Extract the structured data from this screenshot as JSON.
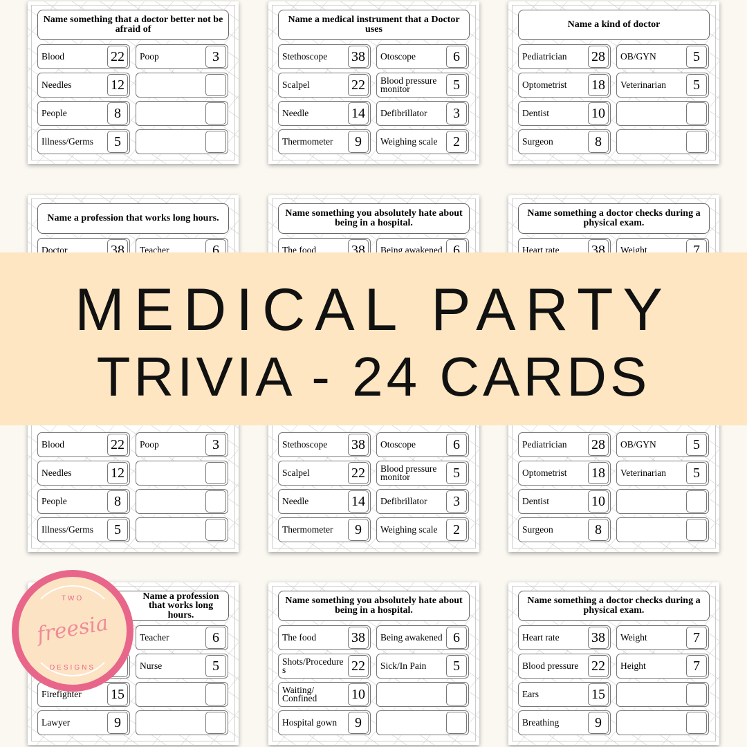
{
  "banner": {
    "line1": "MEDICAL PARTY",
    "line2": "TRIVIA - 24 CARDS",
    "color": "#fde6c1"
  },
  "logo": {
    "top": "TWO",
    "script": "freesia",
    "bottom": "DESIGNS",
    "ring_color": "#e8668a"
  },
  "cards": [
    {
      "question": "Name something that a doctor better not be afraid of",
      "left": [
        [
          "Blood",
          "22"
        ],
        [
          "Needles",
          "12"
        ],
        [
          "People",
          "8"
        ],
        [
          "Illness/Germs",
          "5"
        ]
      ],
      "right": [
        [
          "Poop",
          "3"
        ],
        [
          "",
          ""
        ],
        [
          "",
          ""
        ],
        [
          "",
          ""
        ]
      ]
    },
    {
      "question": "Name a medical instrument that a Doctor uses",
      "left": [
        [
          "Stethoscope",
          "38"
        ],
        [
          "Scalpel",
          "22"
        ],
        [
          "Needle",
          "14"
        ],
        [
          "Thermometer",
          "9"
        ]
      ],
      "right": [
        [
          "Otoscope",
          "6"
        ],
        [
          "Blood pressure monitor",
          "5"
        ],
        [
          "Defibrillator",
          "3"
        ],
        [
          "Weighing scale",
          "2"
        ]
      ]
    },
    {
      "question": "Name a kind of doctor",
      "left": [
        [
          "Pediatrician",
          "28"
        ],
        [
          "Optometrist",
          "18"
        ],
        [
          "Dentist",
          "10"
        ],
        [
          "Surgeon",
          "8"
        ]
      ],
      "right": [
        [
          "OB/GYN",
          "5"
        ],
        [
          "Veterinarian",
          "5"
        ],
        [
          "",
          ""
        ],
        [
          "",
          ""
        ]
      ]
    },
    {
      "question": "Name a profession that works long hours.",
      "left": [
        [
          "Doctor",
          "38"
        ]
      ],
      "right": [
        [
          "Teacher",
          "6"
        ]
      ]
    },
    {
      "question": "Name something you absolutely hate about being in a hospital.",
      "left": [
        [
          "The food",
          "38"
        ]
      ],
      "right": [
        [
          "Being awakened",
          "6"
        ]
      ]
    },
    {
      "question": "Name something a doctor checks during a physical exam.",
      "left": [
        [
          "Heart rate",
          "38"
        ]
      ],
      "right": [
        [
          "Weight",
          "7"
        ]
      ]
    },
    {
      "question": "",
      "left": [
        [
          "Blood",
          "22"
        ],
        [
          "Needles",
          "12"
        ],
        [
          "People",
          "8"
        ],
        [
          "Illness/Germs",
          "5"
        ]
      ],
      "right": [
        [
          "Poop",
          "3"
        ],
        [
          "",
          ""
        ],
        [
          "",
          ""
        ],
        [
          "",
          ""
        ]
      ]
    },
    {
      "question": "",
      "left": [
        [
          "Stethoscope",
          "38"
        ],
        [
          "Scalpel",
          "22"
        ],
        [
          "Needle",
          "14"
        ],
        [
          "Thermometer",
          "9"
        ]
      ],
      "right": [
        [
          "Otoscope",
          "6"
        ],
        [
          "Blood pressure monitor",
          "5"
        ],
        [
          "Defibrillator",
          "3"
        ],
        [
          "Weighing scale",
          "2"
        ]
      ]
    },
    {
      "question": "",
      "left": [
        [
          "Pediatrician",
          "28"
        ],
        [
          "Optometrist",
          "18"
        ],
        [
          "Dentist",
          "10"
        ],
        [
          "Surgeon",
          "8"
        ]
      ],
      "right": [
        [
          "OB/GYN",
          "5"
        ],
        [
          "Veterinarian",
          "5"
        ],
        [
          "",
          ""
        ],
        [
          "",
          ""
        ]
      ]
    },
    {
      "question": "Name a profession that works long hours.",
      "left": [
        [
          "",
          ""
        ],
        [
          "",
          ""
        ],
        [
          "Firefighter",
          "15"
        ],
        [
          "Lawyer",
          "9"
        ]
      ],
      "right": [
        [
          "Teacher",
          "6"
        ],
        [
          "Nurse",
          "5"
        ],
        [
          "",
          ""
        ],
        [
          "",
          ""
        ]
      ]
    },
    {
      "question": "Name something you absolutely hate about being in a hospital.",
      "left": [
        [
          "The food",
          "38"
        ],
        [
          "Shots/Procedures",
          "22"
        ],
        [
          "Waiting/ Confined",
          "10"
        ],
        [
          "Hospital gown",
          "9"
        ]
      ],
      "right": [
        [
          "Being awakened",
          "6"
        ],
        [
          "Sick/In Pain",
          "5"
        ],
        [
          "",
          ""
        ],
        [
          "",
          ""
        ]
      ]
    },
    {
      "question": "Name something a doctor checks during a physical exam.",
      "left": [
        [
          "Heart rate",
          "38"
        ],
        [
          "Blood pressure",
          "22"
        ],
        [
          "Ears",
          "15"
        ],
        [
          "Breathing",
          "9"
        ]
      ],
      "right": [
        [
          "Weight",
          "7"
        ],
        [
          "Height",
          "7"
        ],
        [
          "",
          ""
        ],
        [
          "",
          ""
        ]
      ]
    }
  ]
}
